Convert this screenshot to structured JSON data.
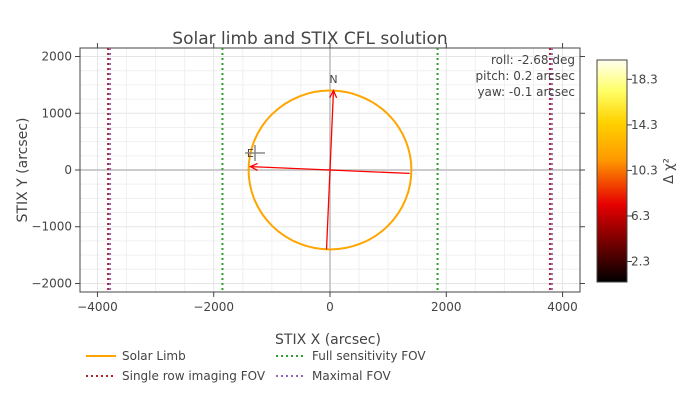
{
  "chart_data": {
    "type": "line",
    "title": "Solar limb and STIX CFL solution",
    "xlabel": "STIX X (arcsec)",
    "ylabel": "STIX Y (arcsec)",
    "xlim": [
      -4300,
      4300
    ],
    "ylim": [
      -2150,
      2150
    ],
    "xticks": [
      -4000,
      -2000,
      0,
      2000,
      4000
    ],
    "xtick_labels": [
      "−4000",
      "−2000",
      "0",
      "2000",
      "4000"
    ],
    "yticks": [
      -2000,
      -1000,
      0,
      1000,
      2000
    ],
    "ytick_labels": [
      "−2000",
      "−1000",
      "0",
      "1000",
      "2000"
    ],
    "grid": true,
    "legend_position": "bottom",
    "solar_limb": {
      "center": [
        0,
        0
      ],
      "radius": 1400
    },
    "fov_lines": [
      {
        "name": "Single row imaging FOV",
        "x": [
          -3800,
          3800
        ],
        "color": "#b22222"
      },
      {
        "name": "Full sensitivity  FOV",
        "x": [
          -1850,
          1850
        ],
        "color": "#2ca02c"
      },
      {
        "name": "Maximal FOV",
        "x": [
          -3800,
          3800
        ],
        "color": "#9467bd"
      }
    ],
    "solution_marker": {
      "x": -1290,
      "y": 300
    },
    "axis_arrows": [
      {
        "from": [
          -60,
          -1400
        ],
        "to": [
          60,
          1400
        ]
      },
      {
        "from": [
          1370,
          -60
        ],
        "to": [
          -1370,
          60
        ]
      }
    ],
    "arrow_labels": [
      {
        "text": "N",
        "x": 60,
        "y": 1530
      },
      {
        "text": "E",
        "x": -1370,
        "y": 230
      }
    ],
    "annotation_lines": [
      "roll: -2.68 deg",
      "pitch: 0.2 arcsec",
      "yaw: -0.1 arcsec"
    ],
    "colorbar": {
      "title": "Δ χ²",
      "ticks": [
        2.3,
        6.3,
        10.3,
        14.3,
        18.3
      ],
      "range": [
        0.5,
        20
      ]
    },
    "legend": [
      {
        "name": "Solar Limb",
        "color": "#ffa500",
        "dash": "solid"
      },
      {
        "name": "Full sensitivity  FOV",
        "color": "#2ca02c",
        "dash": "dot"
      },
      {
        "name": "Single row imaging FOV",
        "color": "#b22222",
        "dash": "dot"
      },
      {
        "name": "Maximal FOV",
        "color": "#9467bd",
        "dash": "dot"
      }
    ],
    "colors": {
      "limb": "#ffa500",
      "arrow": "#ff0000",
      "grid": "#e5e5e5",
      "zero_line": "#cccccc",
      "marker": "#888888"
    }
  }
}
